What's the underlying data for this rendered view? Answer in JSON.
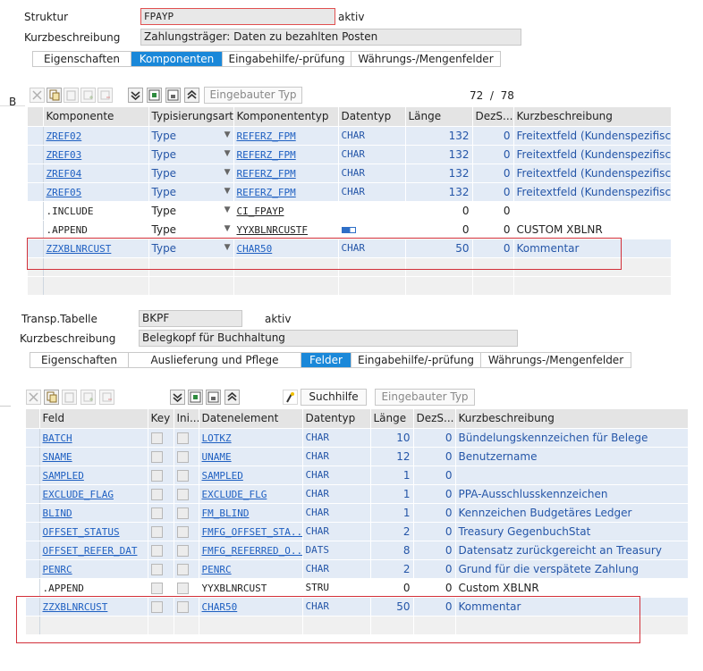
{
  "top": {
    "struktur_label": "Struktur",
    "struktur_value": "FPAYP",
    "status": "aktiv",
    "kurz_label": "Kurzbeschreibung",
    "kurz_value": "Zahlungsträger: Daten zu bezahlten Posten",
    "tabs": [
      "Eigenschaften",
      "Komponenten",
      "Eingabehilfe/-prüfung",
      "Währungs-/Mengenfelder"
    ],
    "active_tab": "Komponenten",
    "builtin_type_label": "Eingebauter Typ",
    "counter": "72  /  78",
    "columns": [
      "Komponente",
      "Typisierungsart",
      "Komponententyp",
      "Datentyp",
      "Länge",
      "DezS...",
      "Kurzbeschreibung"
    ],
    "rows": [
      {
        "name": "ZREF02",
        "typing": "Type",
        "comptype": "REFERZ_FPM",
        "datatype": "CHAR",
        "length": "132",
        "dec": "0",
        "desc": "Freitextfeld (Kundenspezifisch)"
      },
      {
        "name": "ZREF03",
        "typing": "Type",
        "comptype": "REFERZ_FPM",
        "datatype": "CHAR",
        "length": "132",
        "dec": "0",
        "desc": "Freitextfeld (Kundenspezifisch)"
      },
      {
        "name": "ZREF04",
        "typing": "Type",
        "comptype": "REFERZ_FPM",
        "datatype": "CHAR",
        "length": "132",
        "dec": "0",
        "desc": "Freitextfeld (Kundenspezifisch)"
      },
      {
        "name": "ZREF05",
        "typing": "Type",
        "comptype": "REFERZ_FPM",
        "datatype": "CHAR",
        "length": "132",
        "dec": "0",
        "desc": "Freitextfeld (Kundenspezifisch)"
      },
      {
        "name": ".INCLUDE",
        "typing": "Type",
        "comptype": "CI_FPAYP",
        "datatype": "",
        "length": "0",
        "dec": "0",
        "desc": ""
      },
      {
        "name": ".APPEND",
        "typing": "Type",
        "comptype": "YYXBLNRCUSTF",
        "datatype": "",
        "length": "0",
        "dec": "0",
        "desc": "CUSTOM XBLNR"
      },
      {
        "name": "ZZXBLNRCUST",
        "typing": "Type",
        "comptype": "CHAR50",
        "datatype": "CHAR",
        "length": "50",
        "dec": "0",
        "desc": "Kommentar"
      }
    ],
    "side_letter": "B"
  },
  "bottom": {
    "table_label": "Transp.Tabelle",
    "table_value": "BKPF",
    "status": "aktiv",
    "kurz_label": "Kurzbeschreibung",
    "kurz_value": "Belegkopf für Buchhaltung",
    "tabs": [
      "Eigenschaften",
      "Auslieferung und Pflege",
      "Felder",
      "Eingabehilfe/-prüfung",
      "Währungs-/Mengenfelder"
    ],
    "active_tab": "Felder",
    "search_help_label": "Suchhilfe",
    "builtin_type_label": "Eingebauter Typ",
    "columns": [
      "Feld",
      "Key",
      "Ini...",
      "Datenelement",
      "Datentyp",
      "Länge",
      "DezS...",
      "Kurzbeschreibung"
    ],
    "rows": [
      {
        "field": "BATCH",
        "element": "LOTKZ",
        "datatype": "CHAR",
        "length": "10",
        "dec": "0",
        "desc": "Bündelungskennzeichen für Belege"
      },
      {
        "field": "SNAME",
        "element": "UNAME",
        "datatype": "CHAR",
        "length": "12",
        "dec": "0",
        "desc": "Benutzername"
      },
      {
        "field": "SAMPLED",
        "element": "SAMPLED",
        "datatype": "CHAR",
        "length": "1",
        "dec": "0",
        "desc": ""
      },
      {
        "field": "EXCLUDE_FLAG",
        "element": "EXCLUDE_FLG",
        "datatype": "CHAR",
        "length": "1",
        "dec": "0",
        "desc": "PPA-Ausschlusskennzeichen"
      },
      {
        "field": "BLIND",
        "element": "FM_BLIND",
        "datatype": "CHAR",
        "length": "1",
        "dec": "0",
        "desc": "Kennzeichen Budgetäres Ledger"
      },
      {
        "field": "OFFSET_STATUS",
        "element": "FMFG_OFFSET_STA...",
        "datatype": "CHAR",
        "length": "2",
        "dec": "0",
        "desc": "Treasury GegenbuchStat"
      },
      {
        "field": "OFFSET_REFER_DAT",
        "element": "FMFG_REFERRED_O...",
        "datatype": "DATS",
        "length": "8",
        "dec": "0",
        "desc": "Datensatz zurückgereicht an Treasury"
      },
      {
        "field": "PENRC",
        "element": "PENRC",
        "datatype": "CHAR",
        "length": "2",
        "dec": "0",
        "desc": "Grund für die verspätete Zahlung"
      },
      {
        "field": ".APPEND",
        "element": "YYXBLNRCUST",
        "datatype": "STRU",
        "length": "0",
        "dec": "0",
        "desc": "Custom XBLNR"
      },
      {
        "field": "ZZXBLNRCUST",
        "element": "CHAR50",
        "datatype": "CHAR",
        "length": "50",
        "dec": "0",
        "desc": "Kommentar"
      }
    ]
  },
  "colors": {
    "accent_tab": "#1a88d9",
    "link": "#1e5fc1",
    "highlight_box": "#d2303a"
  }
}
